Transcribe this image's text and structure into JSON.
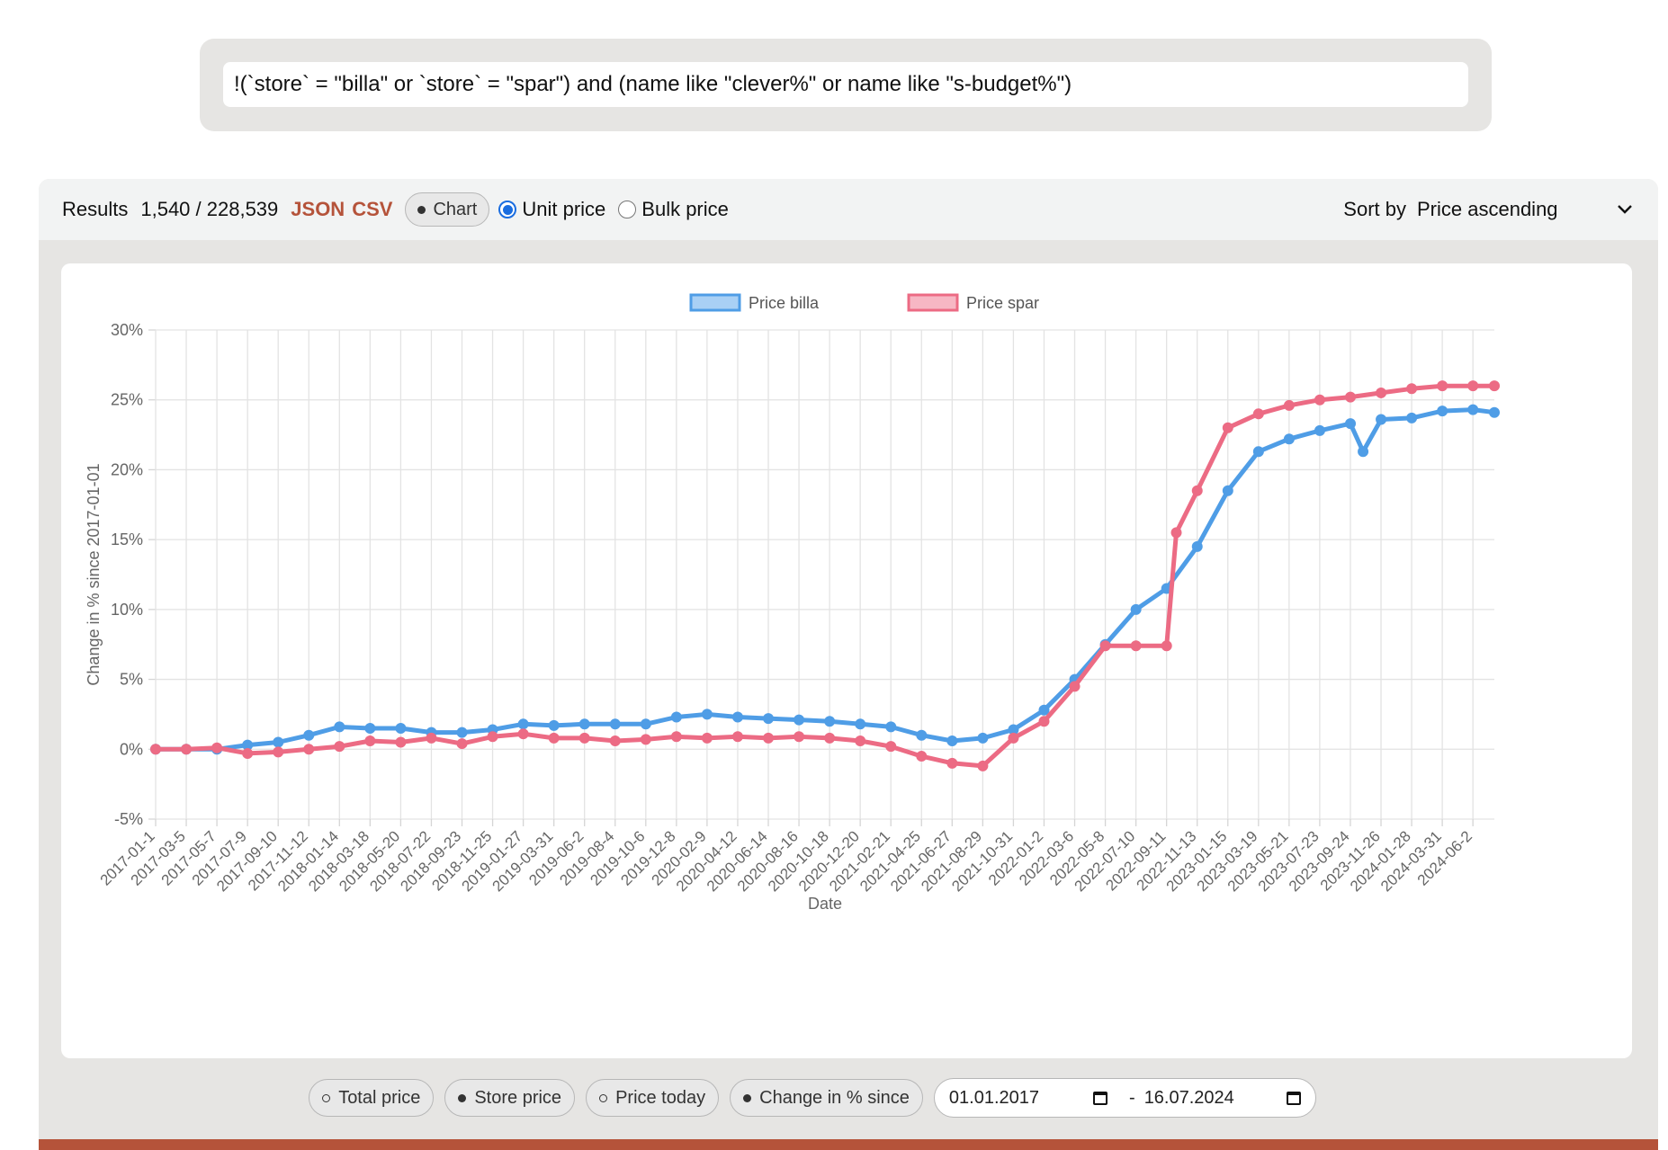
{
  "query": {
    "value": "!(`store` = \"billa\" or `store` = \"spar\") and (name like \"clever%\" or name like \"s-budget%\")"
  },
  "results": {
    "label": "Results",
    "count": "1,540 / 228,539",
    "json_link": "JSON",
    "csv_link": "CSV",
    "chart_button": "Chart",
    "unit_price_label": "Unit price",
    "bulk_price_label": "Bulk price",
    "unit_price_selected": true,
    "sort_label": "Sort by",
    "sort_value": "Price ascending"
  },
  "toggles": {
    "total_price": "Total price",
    "store_price": "Store price",
    "price_today": "Price today",
    "change_since": "Change in % since",
    "date_from": "01.01.2017",
    "date_separator": "-",
    "date_to": "16.07.2024"
  },
  "colors": {
    "billa": "#4f9de6",
    "spar": "#ec6b84",
    "accent": "#b5533a"
  },
  "chart_data": {
    "type": "line",
    "title": "",
    "xlabel": "Date",
    "ylabel": "Change in % since 2017-01-01",
    "ylim": [
      -5,
      30
    ],
    "yticks": [
      "30%",
      "25%",
      "20%",
      "15%",
      "10%",
      "5%",
      "0%",
      "-5%"
    ],
    "grid": true,
    "legend": "top-center",
    "xticks": [
      "2017-01-1",
      "2017-03-5",
      "2017-05-7",
      "2017-07-9",
      "2017-09-10",
      "2017-11-12",
      "2018-01-14",
      "2018-03-18",
      "2018-05-20",
      "2018-07-22",
      "2018-09-23",
      "2018-11-25",
      "2019-01-27",
      "2019-03-31",
      "2019-06-2",
      "2019-08-4",
      "2019-10-6",
      "2019-12-8",
      "2020-02-9",
      "2020-04-12",
      "2020-06-14",
      "2020-08-16",
      "2020-10-18",
      "2020-12-20",
      "2021-02-21",
      "2021-04-25",
      "2021-06-27",
      "2021-08-29",
      "2021-10-31",
      "2022-01-2",
      "2022-03-6",
      "2022-05-8",
      "2022-07-10",
      "2022-09-11",
      "2022-11-13",
      "2023-01-15",
      "2023-03-19",
      "2023-05-21",
      "2023-07-23",
      "2023-09-24",
      "2023-11-26",
      "2024-01-28",
      "2024-03-31",
      "2024-06-2"
    ],
    "series": [
      {
        "name": "Price billa",
        "color": "#4f9de6",
        "x": [
          "2017-01-01",
          "2017-03-05",
          "2017-05-07",
          "2017-07-09",
          "2017-09-10",
          "2017-11-12",
          "2018-01-14",
          "2018-03-18",
          "2018-05-20",
          "2018-07-22",
          "2018-09-23",
          "2018-11-25",
          "2019-01-27",
          "2019-03-31",
          "2019-06-02",
          "2019-08-04",
          "2019-10-06",
          "2019-12-08",
          "2020-02-09",
          "2020-04-12",
          "2020-06-14",
          "2020-08-16",
          "2020-10-18",
          "2020-12-20",
          "2021-02-21",
          "2021-04-25",
          "2021-06-27",
          "2021-08-29",
          "2021-10-31",
          "2022-01-02",
          "2022-03-06",
          "2022-05-08",
          "2022-07-10",
          "2022-09-11",
          "2022-11-13",
          "2023-01-15",
          "2023-03-19",
          "2023-05-21",
          "2023-07-23",
          "2023-09-24",
          "2023-10-20",
          "2023-11-26",
          "2024-01-28",
          "2024-03-31",
          "2024-06-02",
          "2024-07-16"
        ],
        "values": [
          0.0,
          0.0,
          0.0,
          0.3,
          0.5,
          1.0,
          1.6,
          1.5,
          1.5,
          1.2,
          1.2,
          1.4,
          1.8,
          1.7,
          1.8,
          1.8,
          1.8,
          2.3,
          2.5,
          2.3,
          2.2,
          2.1,
          2.0,
          1.8,
          1.6,
          1.0,
          0.6,
          0.8,
          1.4,
          2.8,
          5.0,
          7.5,
          10.0,
          11.5,
          14.5,
          18.5,
          21.3,
          22.2,
          22.8,
          23.3,
          21.3,
          23.6,
          23.7,
          24.2,
          24.3,
          24.1
        ]
      },
      {
        "name": "Price spar",
        "color": "#ec6b84",
        "x": [
          "2017-01-01",
          "2017-03-05",
          "2017-05-07",
          "2017-07-09",
          "2017-09-10",
          "2017-11-12",
          "2018-01-14",
          "2018-03-18",
          "2018-05-20",
          "2018-07-22",
          "2018-09-23",
          "2018-11-25",
          "2019-01-27",
          "2019-03-31",
          "2019-06-02",
          "2019-08-04",
          "2019-10-06",
          "2019-12-08",
          "2020-02-09",
          "2020-04-12",
          "2020-06-14",
          "2020-08-16",
          "2020-10-18",
          "2020-12-20",
          "2021-02-21",
          "2021-04-25",
          "2021-06-27",
          "2021-08-29",
          "2021-10-31",
          "2022-01-02",
          "2022-03-06",
          "2022-05-08",
          "2022-07-10",
          "2022-09-11",
          "2022-10-01",
          "2022-11-13",
          "2023-01-15",
          "2023-03-19",
          "2023-05-21",
          "2023-07-23",
          "2023-09-24",
          "2023-11-26",
          "2024-01-28",
          "2024-03-31",
          "2024-06-02",
          "2024-07-16"
        ],
        "values": [
          0.0,
          0.0,
          0.1,
          -0.3,
          -0.2,
          0.0,
          0.2,
          0.6,
          0.5,
          0.8,
          0.4,
          0.9,
          1.1,
          0.8,
          0.8,
          0.6,
          0.7,
          0.9,
          0.8,
          0.9,
          0.8,
          0.9,
          0.8,
          0.6,
          0.2,
          -0.5,
          -1.0,
          -1.2,
          0.8,
          2.0,
          4.5,
          7.4,
          7.4,
          7.4,
          15.5,
          18.5,
          23.0,
          24.0,
          24.6,
          25.0,
          25.2,
          25.5,
          25.8,
          26.0,
          26.0,
          26.0
        ]
      }
    ]
  }
}
